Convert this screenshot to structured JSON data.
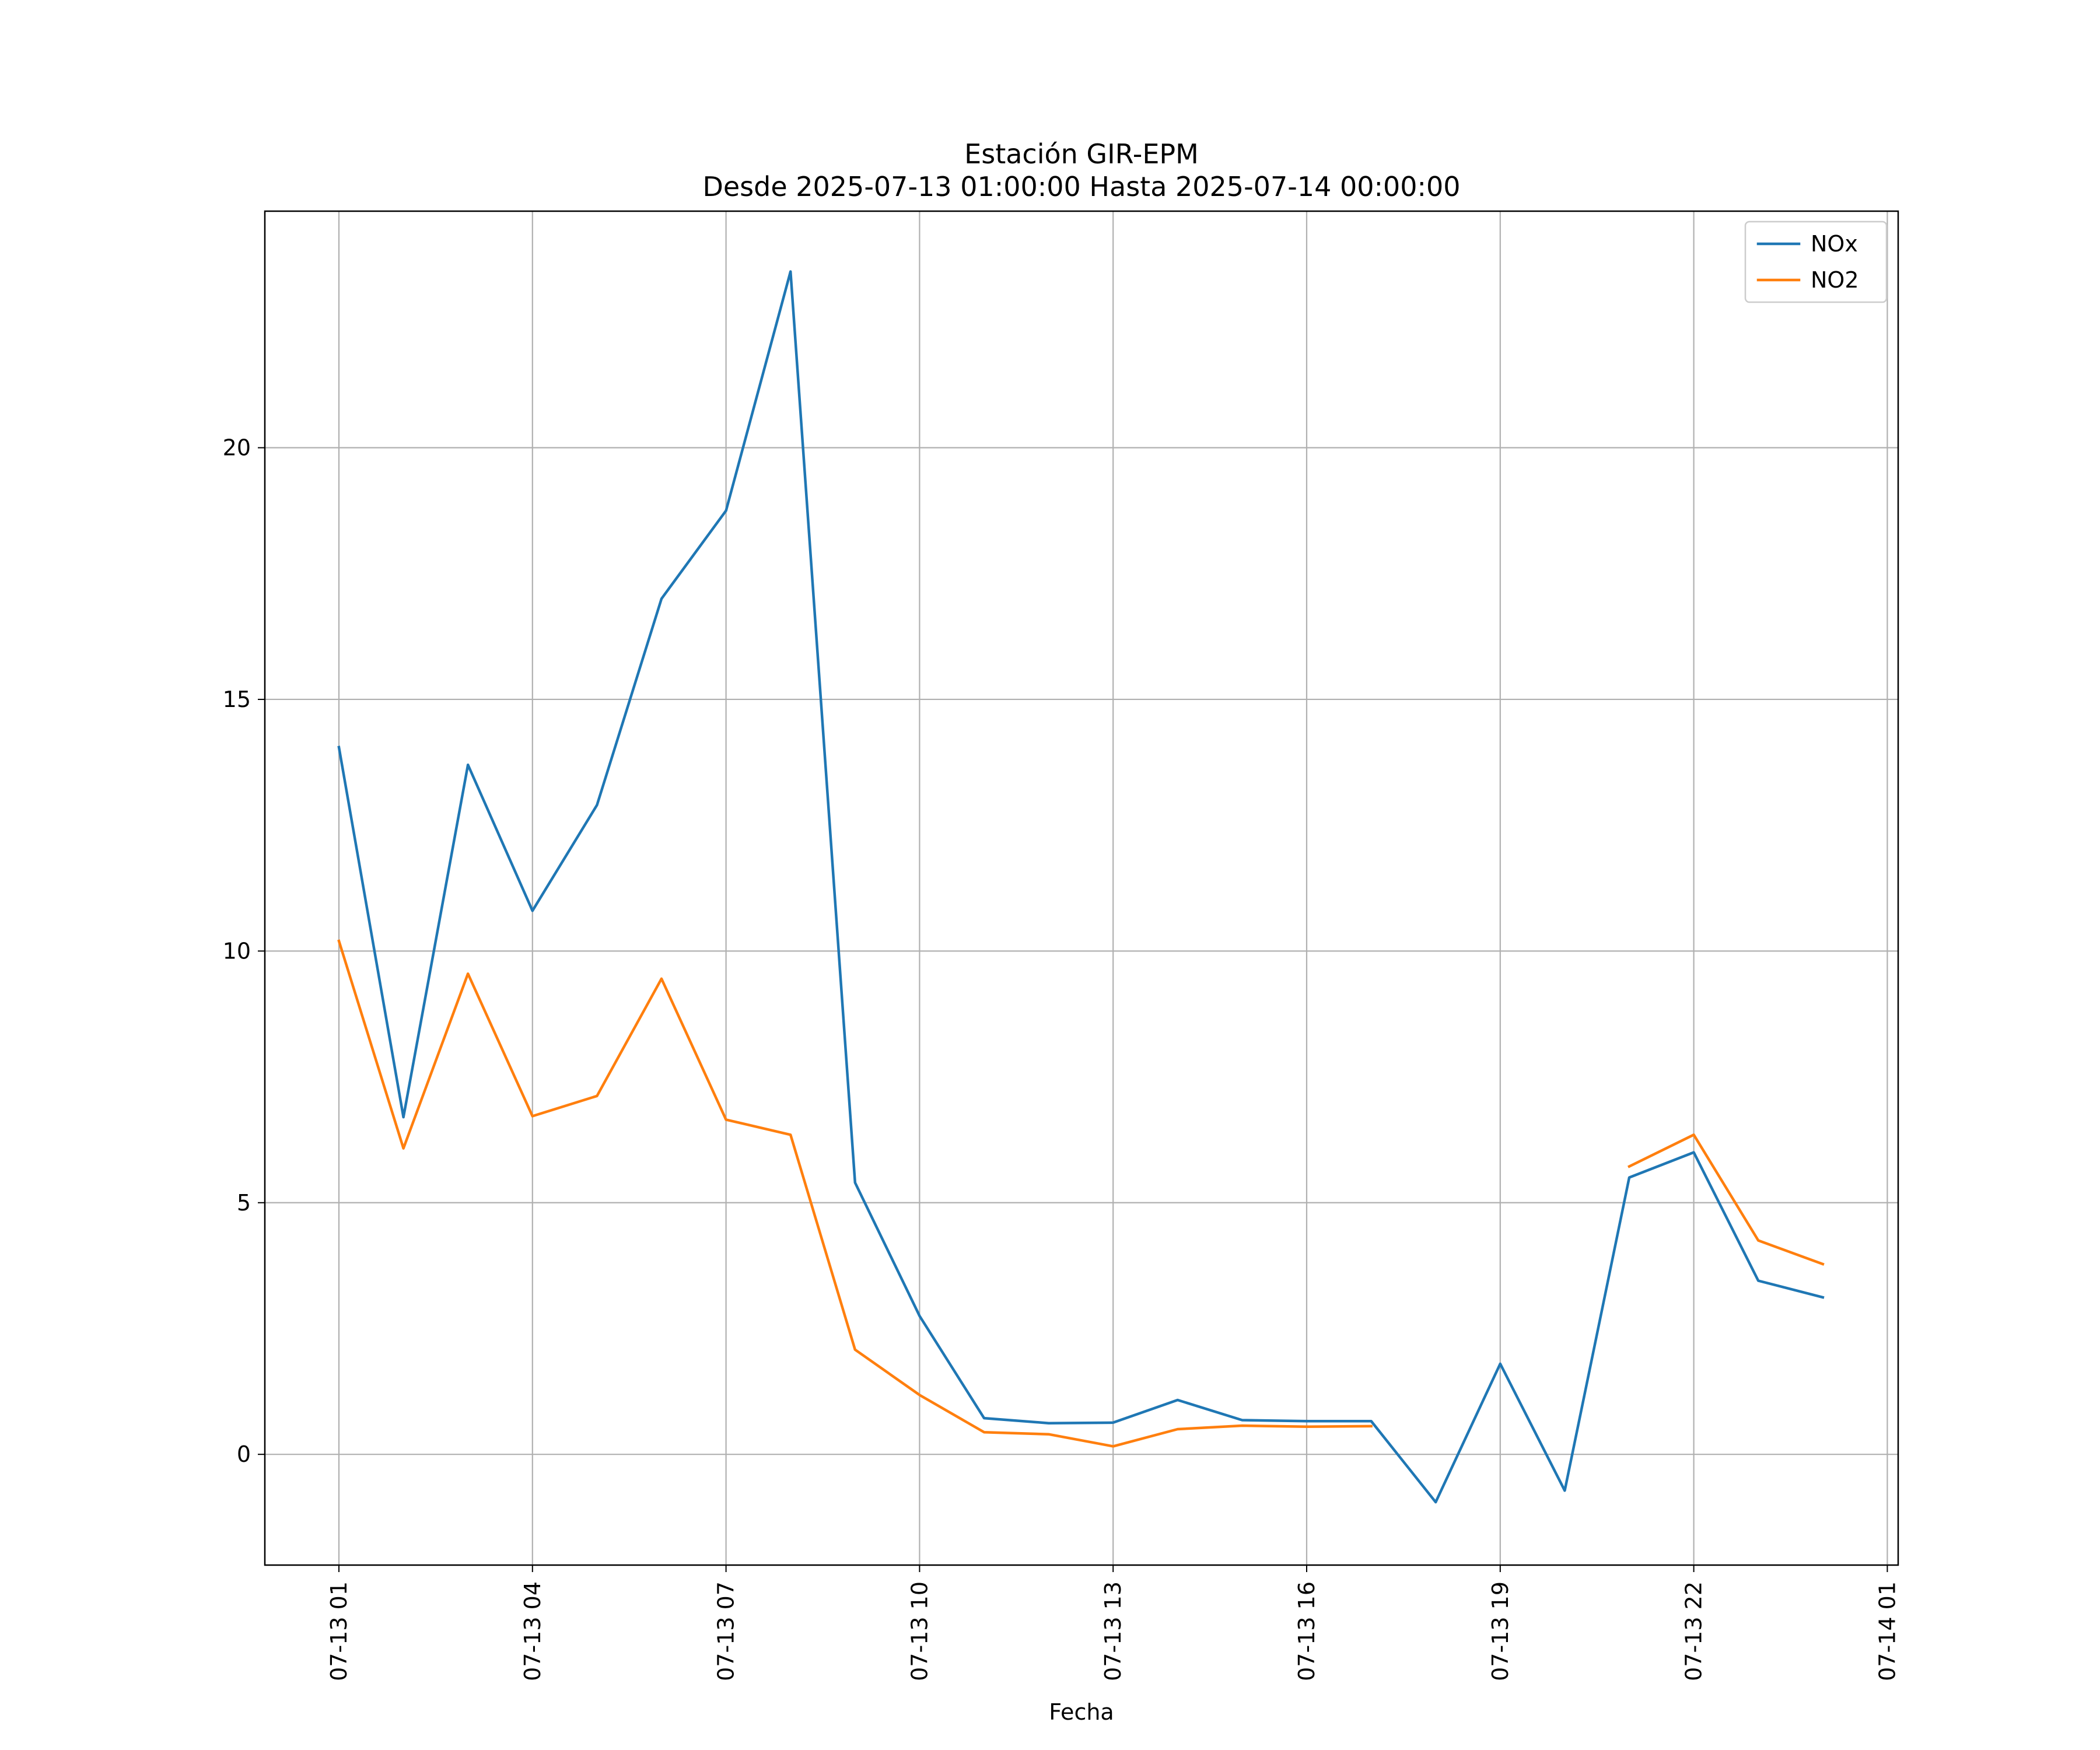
{
  "chart_data": {
    "type": "line",
    "title": "Estación GIR-EPM",
    "subtitle": "Desde 2025-07-13 01:00:00 Hasta 2025-07-14 00:00:00",
    "xlabel": "Fecha",
    "ylabel": "",
    "x": [
      "07-13 01",
      "07-13 02",
      "07-13 03",
      "07-13 04",
      "07-13 05",
      "07-13 06",
      "07-13 07",
      "07-13 08",
      "07-13 09",
      "07-13 10",
      "07-13 11",
      "07-13 12",
      "07-13 13",
      "07-13 14",
      "07-13 15",
      "07-13 16",
      "07-13 17",
      "07-13 18",
      "07-13 19",
      "07-13 20",
      "07-13 21",
      "07-13 22",
      "07-13 23",
      "07-14 00"
    ],
    "x_ticks": [
      "07-13 01",
      "07-13 04",
      "07-13 07",
      "07-13 10",
      "07-13 13",
      "07-13 16",
      "07-13 19",
      "07-13 22",
      "07-14 01"
    ],
    "y_ticks": [
      0,
      5,
      10,
      15,
      20
    ],
    "ylim": [
      -2.2,
      24.7
    ],
    "grid": true,
    "legend_position": "top-right",
    "series": [
      {
        "name": "NOx",
        "color": "#1f77b4",
        "values": [
          14.05,
          6.7,
          13.7,
          10.8,
          12.9,
          17.0,
          18.75,
          23.5,
          5.4,
          2.75,
          0.72,
          0.62,
          0.63,
          1.08,
          0.68,
          0.66,
          0.66,
          -0.95,
          1.8,
          -0.72,
          5.5,
          6.0,
          3.45,
          3.12
        ]
      },
      {
        "name": "NO2",
        "color": "#ff7f0e",
        "values": [
          10.2,
          6.08,
          9.55,
          6.72,
          7.12,
          9.45,
          6.65,
          6.35,
          2.08,
          1.18,
          0.44,
          0.4,
          0.16,
          0.5,
          0.57,
          0.55,
          0.56,
          null,
          null,
          null,
          5.72,
          6.35,
          4.25,
          3.78
        ]
      }
    ]
  }
}
